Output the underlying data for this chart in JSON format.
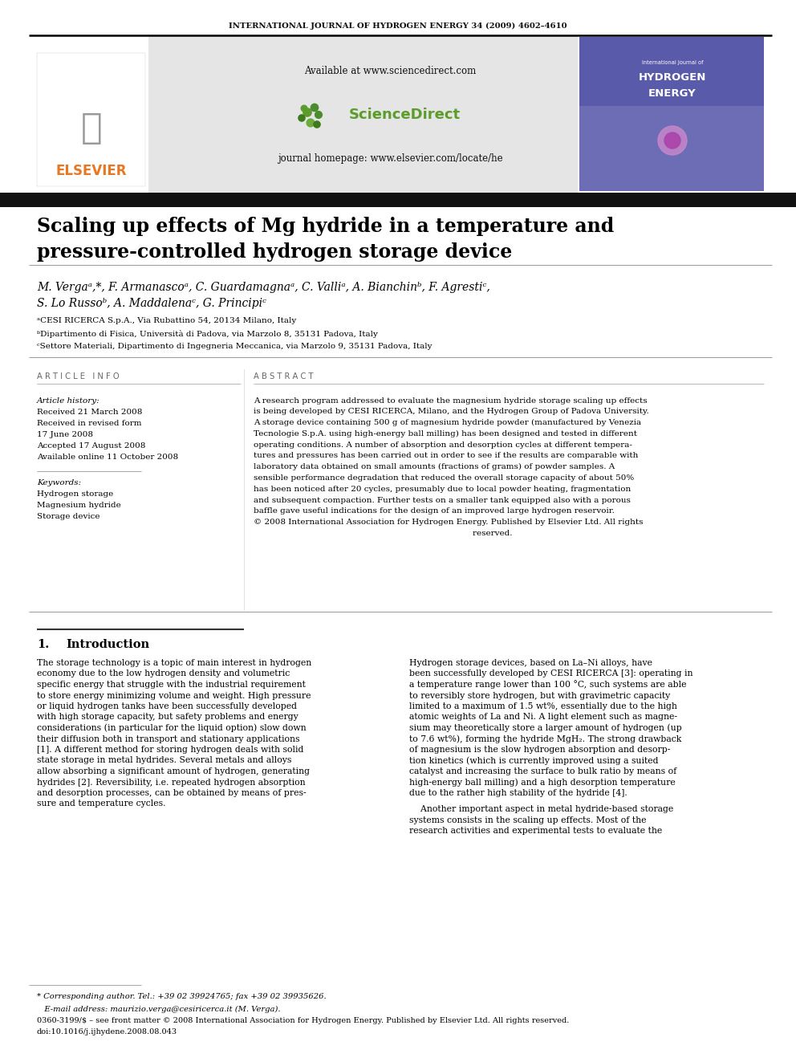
{
  "journal_header": "INTERNATIONAL JOURNAL OF HYDROGEN ENERGY 34 (2009) 4602–4610",
  "title_line1": "Scaling up effects of Mg hydride in a temperature and",
  "title_line2": "pressure-controlled hydrogen storage device",
  "author_line1": "M. Vergaᵃ,*, F. Armanascoᵃ, C. Guardamagnaᵃ, C. Valliᵃ, A. Bianchinᵇ, F. Agrestiᶜ,",
  "author_line2": "S. Lo Russoᵇ, A. Maddalenaᶜ, G. Principiᶜ",
  "affil_a": "ᵃCESI RICERCA S.p.A., Via Rubattino 54, 20134 Milano, Italy",
  "affil_b": "ᵇDipartimento di Fisica, Università di Padova, via Marzolo 8, 35131 Padova, Italy",
  "affil_c": "ᶜSettore Materiali, Dipartimento di Ingegneria Meccanica, via Marzolo 9, 35131 Padova, Italy",
  "article_info_header": "A R T I C L E   I N F O",
  "abstract_header": "A B S T R A C T",
  "article_history_label": "Article history:",
  "received_label": "Received 21 March 2008",
  "revised_line1": "Received in revised form",
  "revised_line2": "17 June 2008",
  "accepted_label": "Accepted 17 August 2008",
  "online_label": "Available online 11 October 2008",
  "keywords_label": "Keywords:",
  "kw1": "Hydrogen storage",
  "kw2": "Magnesium hydride",
  "kw3": "Storage device",
  "abstract_lines": [
    "A research program addressed to evaluate the magnesium hydride storage scaling up effects",
    "is being developed by CESI RICERCA, Milano, and the Hydrogen Group of Padova University.",
    "A storage device containing 500 g of magnesium hydride powder (manufactured by Venezia",
    "Tecnologie S.p.A. using high-energy ball milling) has been designed and tested in different",
    "operating conditions. A number of absorption and desorption cycles at different tempera-",
    "tures and pressures has been carried out in order to see if the results are comparable with",
    "laboratory data obtained on small amounts (fractions of grams) of powder samples. A",
    "sensible performance degradation that reduced the overall storage capacity of about 50%",
    "has been noticed after 20 cycles, presumably due to local powder heating, fragmentation",
    "and subsequent compaction. Further tests on a smaller tank equipped also with a porous",
    "baffle gave useful indications for the design of an improved large hydrogen reservoir.",
    "© 2008 International Association for Hydrogen Energy. Published by Elsevier Ltd. All rights",
    "                                                                                    reserved."
  ],
  "section1_header_num": "1.",
  "section1_header_text": "Introduction",
  "intro_left_lines": [
    "The storage technology is a topic of main interest in hydrogen",
    "economy due to the low hydrogen density and volumetric",
    "specific energy that struggle with the industrial requirement",
    "to store energy minimizing volume and weight. High pressure",
    "or liquid hydrogen tanks have been successfully developed",
    "with high storage capacity, but safety problems and energy",
    "considerations (in particular for the liquid option) slow down",
    "their diffusion both in transport and stationary applications",
    "[1]. A different method for storing hydrogen deals with solid",
    "state storage in metal hydrides. Several metals and alloys",
    "allow absorbing a significant amount of hydrogen, generating",
    "hydrides [2]. Reversibility, i.e. repeated hydrogen absorption",
    "and desorption processes, can be obtained by means of pres-",
    "sure and temperature cycles."
  ],
  "intro_right_lines": [
    "Hydrogen storage devices, based on La–Ni alloys, have",
    "been successfully developed by CESI RICERCA [3]: operating in",
    "a temperature range lower than 100 °C, such systems are able",
    "to reversibly store hydrogen, but with gravimetric capacity",
    "limited to a maximum of 1.5 wt%, essentially due to the high",
    "atomic weights of La and Ni. A light element such as magne-",
    "sium may theoretically store a larger amount of hydrogen (up",
    "to 7.6 wt%), forming the hydride MgH₂. The strong drawback",
    "of magnesium is the slow hydrogen absorption and desorp-",
    "tion kinetics (which is currently improved using a suited",
    "catalyst and increasing the surface to bulk ratio by means of",
    "high-energy ball milling) and a high desorption temperature",
    "due to the rather high stability of the hydride [4].",
    "",
    "    Another important aspect in metal hydride-based storage",
    "systems consists in the scaling up effects. Most of the",
    "research activities and experimental tests to evaluate the"
  ],
  "footer_note": "* Corresponding author. Tel.: +39 02 39924765; fax +39 02 39935626.",
  "footer_email": "   E-mail address: maurizio.verga@cesiricerca.it (M. Verga).",
  "footer_issn": "0360-3199/$ – see front matter © 2008 International Association for Hydrogen Energy. Published by Elsevier Ltd. All rights reserved.",
  "footer_doi": "doi:10.1016/j.ijhydene.2008.08.043",
  "sciencedirect_text": "Available at www.sciencedirect.com",
  "journal_homepage": "journal homepage: www.elsevier.com/locate/he",
  "bg_color": "#ffffff",
  "elsevier_orange": "#E87722",
  "sd_bg": "#e8e8e8",
  "black_bar": "#111111",
  "gray_text": "#666666",
  "cover_blue_dark": "#3a3a7a",
  "cover_blue_mid": "#6060a0"
}
